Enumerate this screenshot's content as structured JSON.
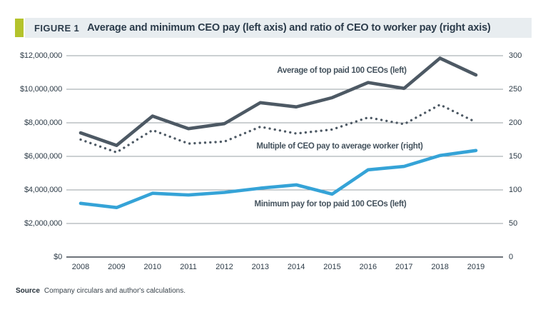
{
  "header": {
    "figure_label": "FIGURE 1",
    "title": "Average and minimum CEO pay (left axis) and ratio of CEO to worker pay (right axis)"
  },
  "source": {
    "label": "Source",
    "text": "Company circulars and author's calculations."
  },
  "colors": {
    "accent": "#b4c32c",
    "header_background": "#e8edf0",
    "dark_series": "#4d5964",
    "blue_series": "#35a3d7",
    "gridline": "#9aa0a4",
    "axis_line": "#3e474e",
    "text": "#2e3c48"
  },
  "chart_data": {
    "type": "line",
    "x": [
      2008,
      2009,
      2010,
      2011,
      2012,
      2013,
      2014,
      2015,
      2016,
      2017,
      2018,
      2019
    ],
    "left_axis": {
      "min": 0,
      "max": 12000000,
      "ticks_top_down": [
        "$12,000,000",
        "$10,000,000",
        "$8,000,000",
        "$6,000,000",
        "$4,000,000",
        "$2,000,000",
        "$0"
      ]
    },
    "right_axis": {
      "min": 0,
      "max": 300,
      "ticks_top_down": [
        "300",
        "250",
        "200",
        "150",
        "100",
        "50",
        "0"
      ]
    },
    "grid": true,
    "legend_position": "inline-annotations",
    "series": [
      {
        "name": "Average of top paid 100 CEOs (left)",
        "axis": "left",
        "style": "solid",
        "color": "#4d5964",
        "values": [
          7400000,
          6650000,
          8400000,
          7650000,
          7950000,
          9200000,
          8950000,
          9500000,
          10400000,
          10050000,
          11850000,
          10850000
        ]
      },
      {
        "name": "Multiple of CEO pay to average worker (right)",
        "axis": "right",
        "style": "dotted",
        "color": "#4d5964",
        "values": [
          175,
          156,
          189,
          169,
          172,
          194,
          184,
          190,
          208,
          198,
          227,
          201
        ]
      },
      {
        "name": "Minimum pay for top paid 100 CEOs (left)",
        "axis": "left",
        "style": "solid",
        "color": "#35a3d7",
        "values": [
          3200000,
          2950000,
          3800000,
          3700000,
          3850000,
          4100000,
          4300000,
          3750000,
          5200000,
          5400000,
          6050000,
          6350000
        ]
      }
    ]
  }
}
